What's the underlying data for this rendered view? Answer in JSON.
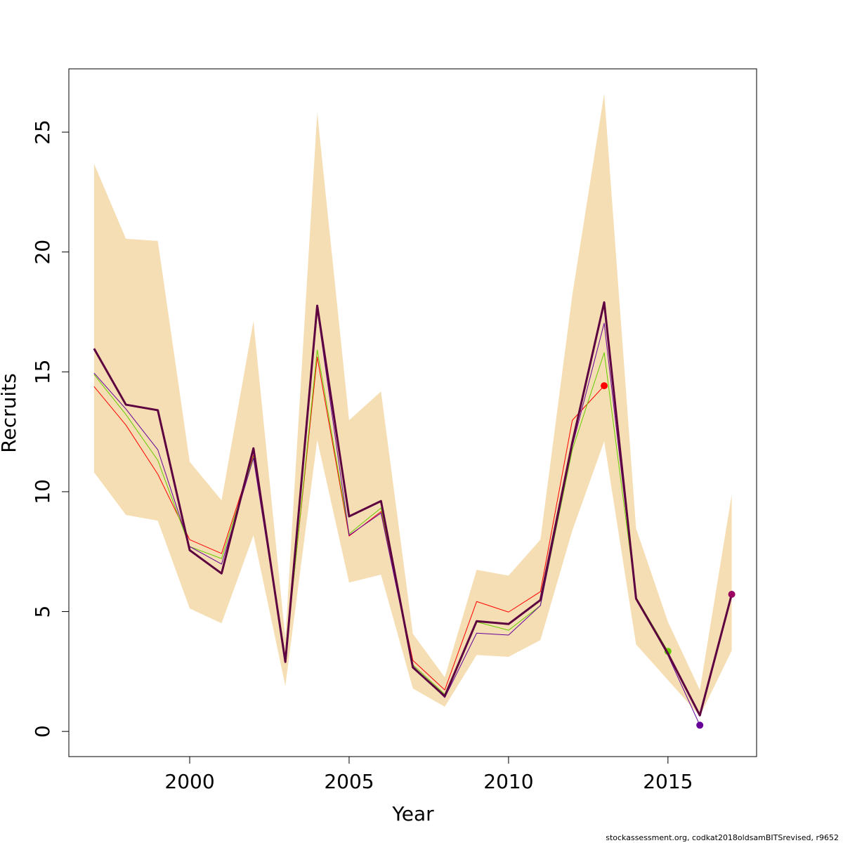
{
  "chart_data": {
    "type": "line",
    "x_label": "Year",
    "y_label": "Recruits",
    "footer": "stockassessment.org, codkat2018oldsamBITSrevised, r9652",
    "x": [
      1997,
      1998,
      1999,
      2000,
      2001,
      2002,
      2003,
      2004,
      2005,
      2006,
      2007,
      2008,
      2009,
      2010,
      2011,
      2012,
      2013,
      2014,
      2015,
      2016,
      2017
    ],
    "xlim": [
      1996.21,
      2017.78
    ],
    "xticks": [
      2000,
      2005,
      2010,
      2015
    ],
    "ylim": [
      -1.05,
      27.64
    ],
    "yticks": [
      0,
      5,
      10,
      15,
      20,
      25
    ],
    "band": {
      "color": "#f5deb3",
      "upper": [
        23.68,
        20.55,
        20.46,
        11.25,
        9.64,
        17.12,
        3.9,
        25.82,
        12.98,
        14.18,
        4.07,
        2.26,
        6.74,
        6.5,
        8.0,
        18.2,
        26.61,
        8.47,
        4.57,
        1.73,
        9.88
      ],
      "lower": [
        10.81,
        9.03,
        8.79,
        5.13,
        4.51,
        8.18,
        1.9,
        12.16,
        6.21,
        6.54,
        1.79,
        1.03,
        3.19,
        3.11,
        3.81,
        8.38,
        12.1,
        3.63,
        2.14,
        0.64,
        3.37
      ]
    },
    "series": [
      {
        "color": "#ff0000",
        "width": 1,
        "values": [
          14.39,
          12.78,
          10.73,
          8.0,
          7.42,
          11.52,
          3.1,
          15.62,
          8.15,
          9.17,
          2.96,
          1.73,
          5.42,
          4.98,
          5.83,
          12.98,
          14.42,
          null,
          null,
          null,
          null
        ]
      },
      {
        "color": "#66cc00",
        "width": 1,
        "values": [
          14.89,
          13.22,
          11.31,
          7.71,
          7.21,
          11.46,
          2.96,
          15.91,
          8.24,
          9.32,
          2.78,
          1.55,
          4.57,
          4.22,
          5.25,
          11.75,
          15.8,
          5.6,
          3.34,
          null,
          null
        ]
      },
      {
        "color": "#660099",
        "width": 1,
        "values": [
          14.95,
          13.45,
          11.75,
          7.71,
          6.98,
          11.4,
          2.96,
          17.6,
          8.18,
          9.11,
          2.73,
          1.41,
          4.1,
          4.02,
          5.25,
          11.9,
          17.03,
          5.54,
          3.17,
          0.26,
          null
        ]
      },
      {
        "color": "#5c0040",
        "point_color": "#99005f",
        "width": 3,
        "values": [
          15.97,
          13.63,
          13.4,
          7.56,
          6.59,
          11.81,
          2.9,
          17.76,
          8.97,
          9.61,
          2.67,
          1.47,
          4.6,
          4.48,
          5.48,
          12.05,
          17.9,
          5.54,
          3.25,
          0.67,
          5.72
        ]
      }
    ]
  }
}
